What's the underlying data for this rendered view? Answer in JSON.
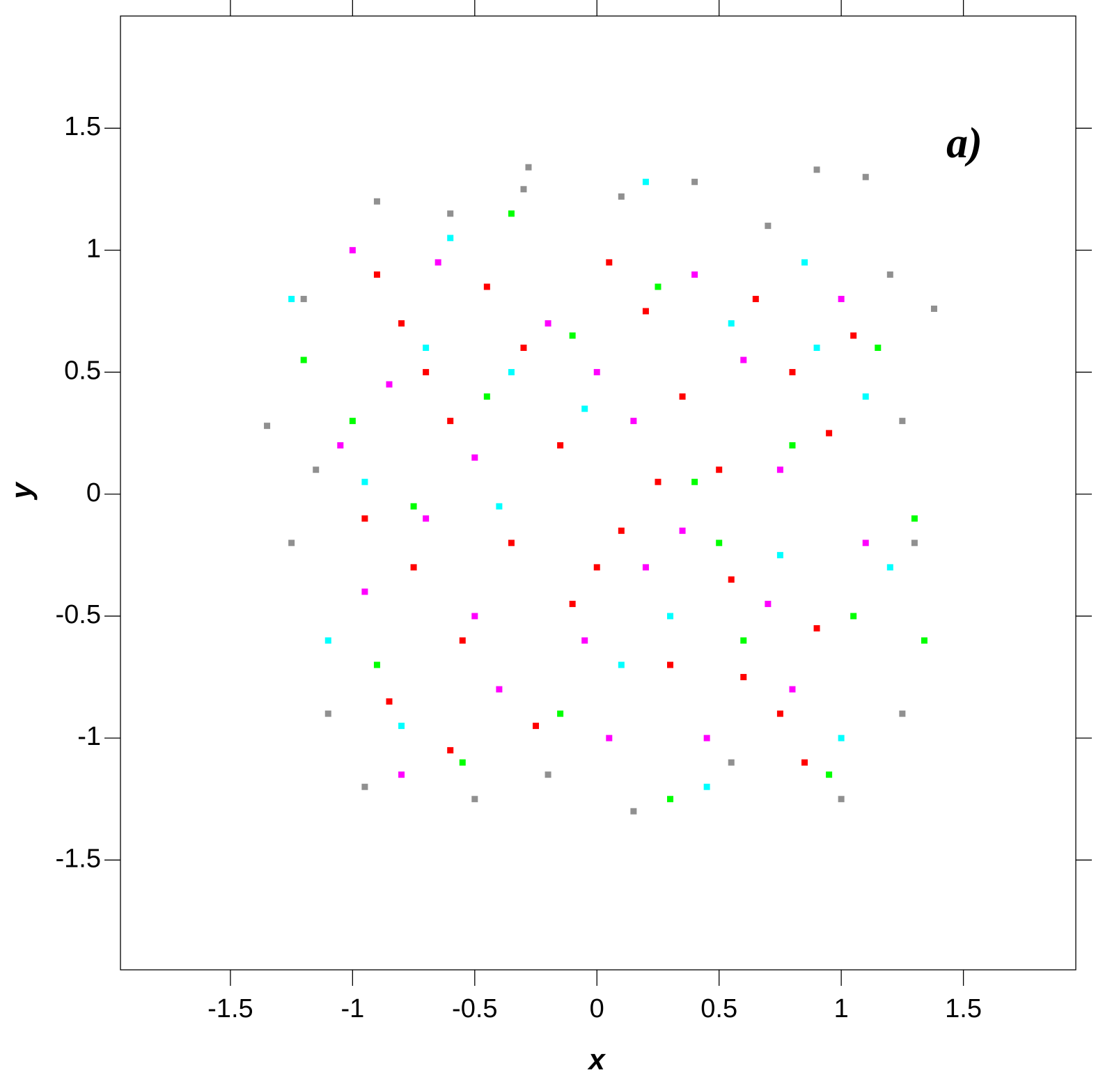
{
  "chart_data": {
    "type": "scatter",
    "annotation": "a)",
    "x_label": "x",
    "y_label": "y",
    "xlim": [
      -1.95,
      1.96
    ],
    "ylim": [
      -1.95,
      1.96
    ],
    "xticks": [
      -1.5,
      -1,
      -0.5,
      0,
      0.5,
      1,
      1.5
    ],
    "yticks": [
      -1.5,
      -1,
      -0.5,
      0,
      0.5,
      1,
      1.5
    ],
    "series": [
      {
        "color": "#909090",
        "x": [
          -1.35,
          -1.25,
          -1.2,
          -1.1,
          -0.9,
          -0.6,
          -0.3,
          0.1,
          0.4,
          0.7,
          0.9,
          1.1,
          1.2,
          1.25,
          1.3,
          1.38,
          1.25,
          1.0,
          0.55,
          0.15,
          -0.2,
          -0.5,
          -0.95,
          -1.15,
          -0.28
        ],
        "y": [
          0.28,
          -0.2,
          0.8,
          -0.9,
          1.2,
          1.15,
          1.25,
          1.22,
          1.28,
          1.1,
          1.33,
          1.3,
          0.9,
          0.3,
          -0.2,
          0.76,
          -0.9,
          -1.25,
          -1.1,
          -1.3,
          -1.15,
          -1.25,
          -1.2,
          0.1,
          1.34
        ]
      },
      {
        "color": "#00ffff",
        "x": [
          -1.25,
          -0.95,
          -0.7,
          -0.4,
          -0.05,
          0.2,
          0.55,
          0.85,
          1.1,
          1.2,
          -1.1,
          -0.8,
          -0.35,
          0.1,
          0.45,
          0.75,
          1.0,
          -0.6,
          0.3,
          0.9
        ],
        "y": [
          0.8,
          0.05,
          0.6,
          -0.05,
          0.35,
          1.28,
          0.7,
          0.95,
          0.4,
          -0.3,
          -0.6,
          -0.95,
          0.5,
          -0.7,
          -1.2,
          -0.25,
          -1.0,
          1.05,
          -0.5,
          0.6
        ]
      },
      {
        "color": "#00ff00",
        "x": [
          -1.2,
          -1.0,
          -0.75,
          -0.45,
          -0.1,
          0.25,
          0.5,
          0.8,
          1.05,
          1.3,
          -0.9,
          -0.55,
          -0.15,
          0.3,
          0.6,
          0.95,
          1.15,
          -0.35,
          0.4,
          1.34
        ],
        "y": [
          0.55,
          0.3,
          -0.05,
          0.4,
          0.65,
          0.85,
          -0.2,
          0.2,
          -0.5,
          -0.1,
          -0.7,
          -1.1,
          -0.9,
          -1.25,
          -0.6,
          -1.15,
          0.6,
          1.15,
          0.05,
          -0.6
        ]
      },
      {
        "color": "#ff00ff",
        "x": [
          -1.0,
          -0.85,
          -0.65,
          -0.5,
          -0.2,
          0.0,
          0.15,
          0.4,
          0.6,
          0.75,
          1.0,
          -0.95,
          -0.7,
          -0.4,
          -0.05,
          0.2,
          0.45,
          0.7,
          1.1,
          -0.8,
          -0.5,
          0.05,
          0.35,
          0.8,
          -1.05
        ],
        "y": [
          1.0,
          0.45,
          0.95,
          0.15,
          0.7,
          0.5,
          0.3,
          0.9,
          0.55,
          0.1,
          0.8,
          -0.4,
          -0.1,
          -0.8,
          -0.6,
          -0.3,
          -1.0,
          -0.45,
          -0.2,
          -1.15,
          -0.5,
          -1.0,
          -0.15,
          -0.8,
          0.2
        ]
      },
      {
        "color": "#ff0000",
        "x": [
          -0.9,
          -0.8,
          -0.7,
          -0.6,
          -0.45,
          -0.3,
          -0.15,
          0.05,
          0.2,
          0.35,
          0.5,
          0.65,
          0.8,
          0.95,
          1.05,
          -0.95,
          -0.75,
          -0.55,
          -0.35,
          -0.1,
          0.1,
          0.3,
          0.55,
          0.75,
          0.9,
          -0.85,
          -0.6,
          -0.25,
          0.0,
          0.25,
          0.6,
          0.85
        ],
        "y": [
          0.9,
          0.7,
          0.5,
          0.3,
          0.85,
          0.6,
          0.2,
          0.95,
          0.75,
          0.4,
          0.1,
          0.8,
          0.5,
          0.25,
          0.65,
          -0.1,
          -0.3,
          -0.6,
          -0.2,
          -0.45,
          -0.15,
          -0.7,
          -0.35,
          -0.9,
          -0.55,
          -0.85,
          -1.05,
          -0.95,
          -0.3,
          0.05,
          -0.75,
          -1.1
        ]
      }
    ]
  }
}
